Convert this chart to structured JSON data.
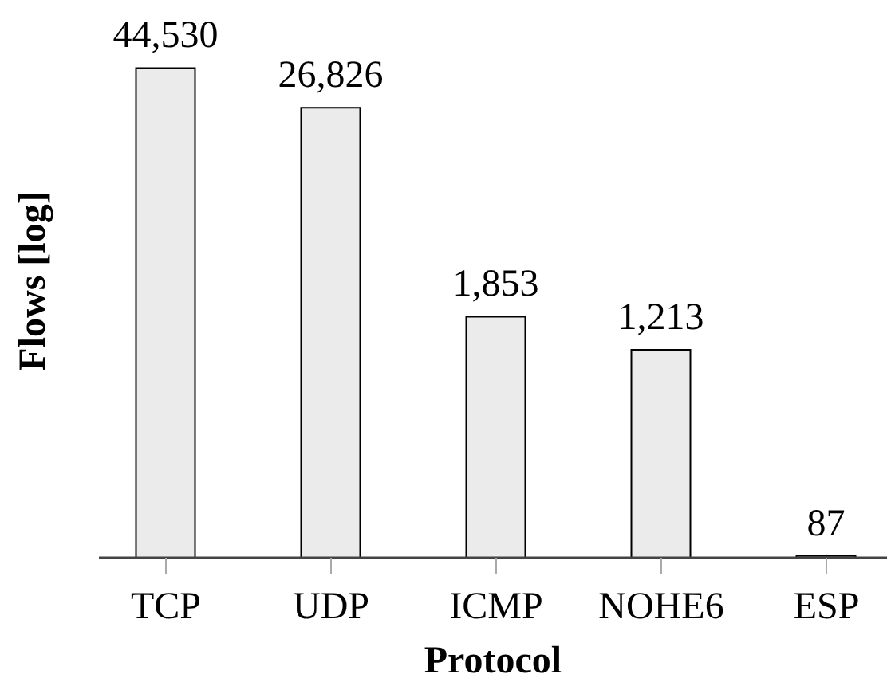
{
  "chart_data": {
    "type": "bar",
    "xlabel": "Protocol",
    "ylabel": "Flows [log]",
    "categories": [
      "TCP",
      "UDP",
      "ICMP",
      "NOHE6",
      "ESP"
    ],
    "values": [
      44530,
      26826,
      1853,
      1213,
      87
    ],
    "value_labels": [
      "44,530",
      "26,826",
      "1,853",
      "1,213",
      "87"
    ],
    "color": "#ebebeb",
    "log": true,
    "ylim": [
      85,
      100000
    ],
    "tick_labels": "x"
  }
}
